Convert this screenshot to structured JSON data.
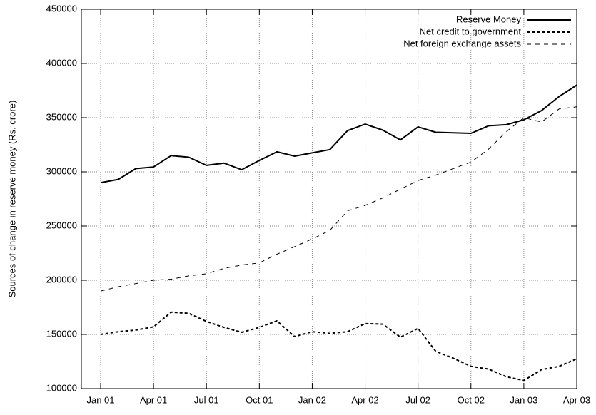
{
  "chart_data": {
    "type": "line",
    "ylabel": "Sources of change in reserve money (Rs. crore)",
    "categories": [
      "Jan 01",
      null,
      null,
      "Apr 01",
      null,
      null,
      "Jul 01",
      null,
      null,
      "Oct 01",
      null,
      null,
      "Jan 02",
      null,
      null,
      "Apr 02",
      null,
      null,
      "Jul 02",
      null,
      null,
      "Oct 02",
      null,
      null,
      "Jan 03",
      null,
      null,
      "Apr 03"
    ],
    "series": [
      {
        "name": "Reserve Money",
        "color": "#000000",
        "width": 2,
        "dash": "none",
        "values": [
          290000,
          293000,
          303000,
          304500,
          315000,
          313500,
          306000,
          308000,
          302000,
          310500,
          318500,
          314500,
          317500,
          320500,
          338000,
          344000,
          338500,
          329500,
          341500,
          336500,
          336000,
          335500,
          342500,
          343500,
          348000,
          356500,
          369500,
          380000
        ]
      },
      {
        "name": "Net credit to government",
        "color": "#000000",
        "width": 2,
        "dash": "4 3",
        "values": [
          150000,
          152500,
          154000,
          157000,
          170500,
          169500,
          162000,
          156500,
          152000,
          156500,
          162500,
          148000,
          152500,
          151000,
          152500,
          160000,
          159500,
          147500,
          155500,
          134500,
          128000,
          120500,
          118000,
          111000,
          107500,
          117500,
          120500,
          127500
        ]
      },
      {
        "name": "Net foreign exchange assets",
        "color": "#000000",
        "width": 1,
        "dash": "6 6",
        "values": [
          190000,
          194000,
          197000,
          200000,
          201000,
          204000,
          206000,
          211000,
          214000,
          216000,
          224000,
          231000,
          238000,
          246000,
          264000,
          269000,
          276000,
          284000,
          292000,
          297000,
          303000,
          309000,
          321000,
          337000,
          350000,
          346000,
          358000,
          360000
        ]
      }
    ],
    "ylim": [
      100000,
      450000
    ],
    "yticks": [
      100000,
      150000,
      200000,
      250000,
      300000,
      350000,
      400000,
      450000
    ],
    "grid": true,
    "legend": "top-right"
  }
}
